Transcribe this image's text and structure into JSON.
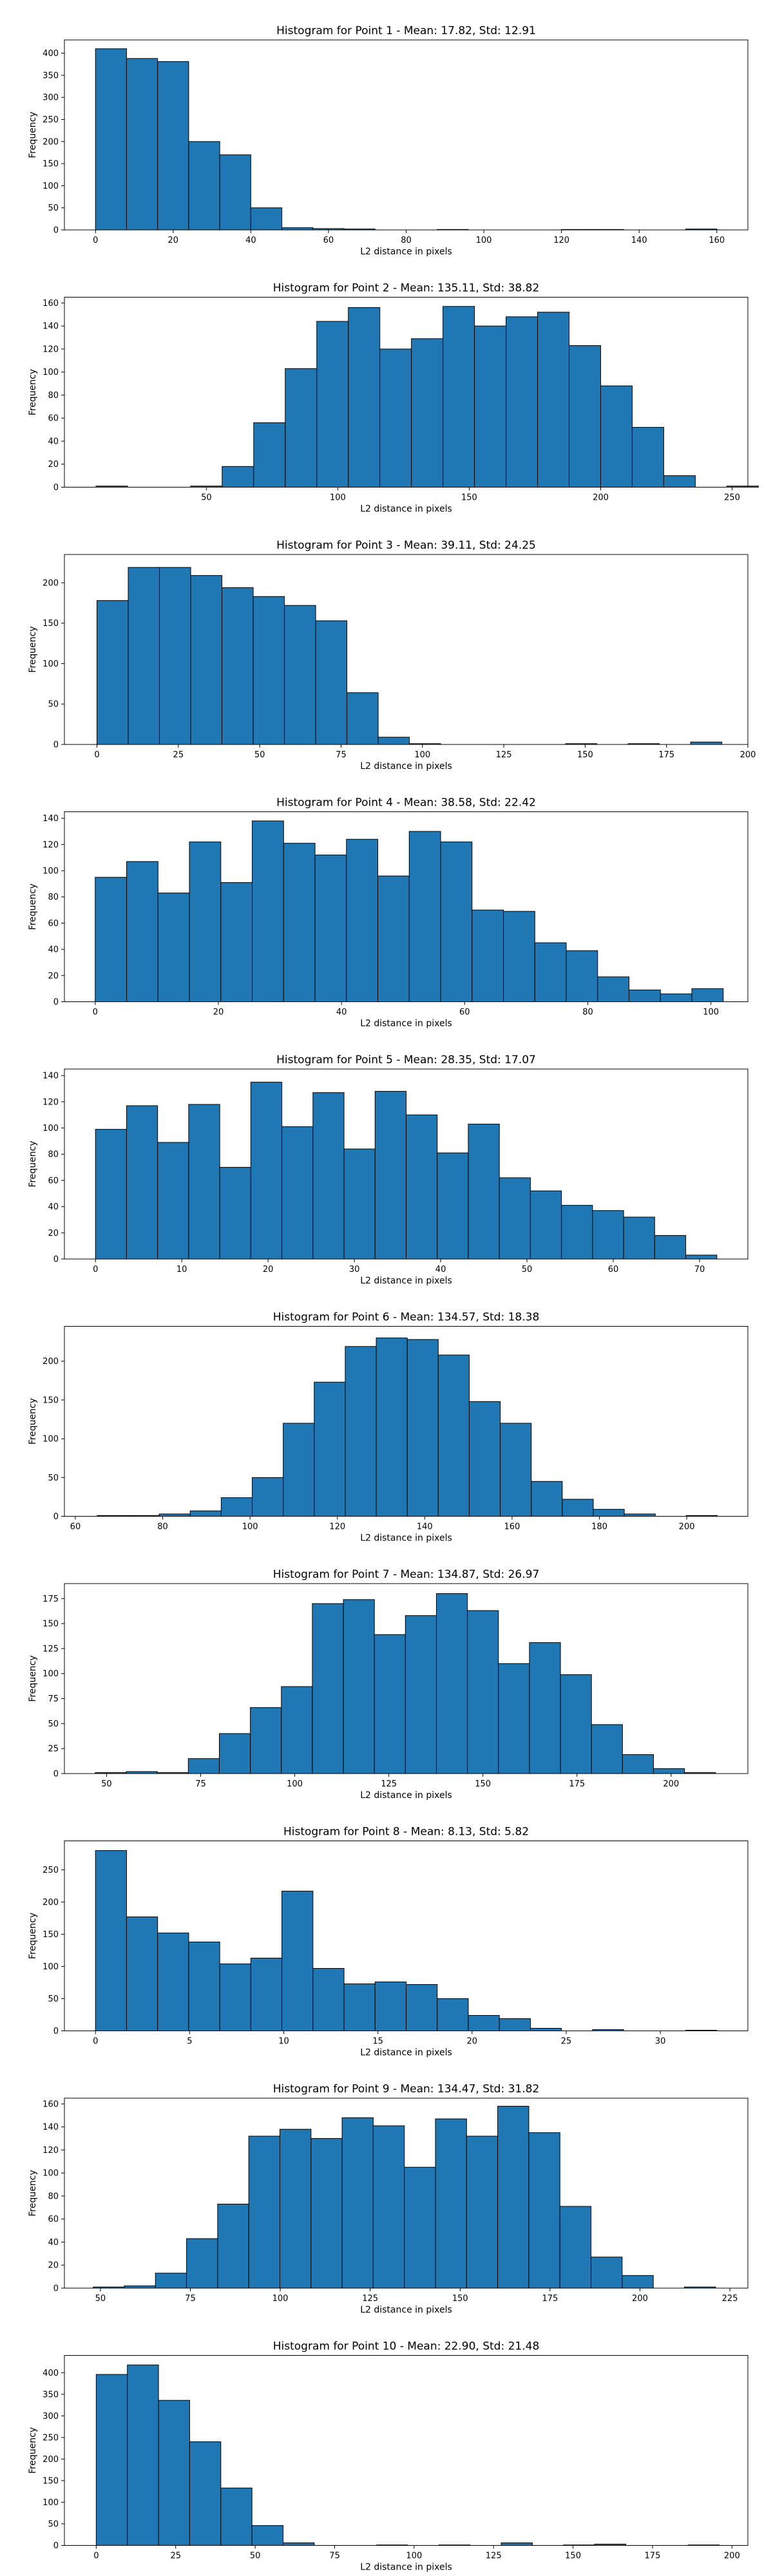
{
  "style": {
    "bar_fill": "#1f77b4",
    "bar_edge": "#000000",
    "axis_color": "#000000",
    "background": "#ffffff"
  },
  "chart_data": [
    {
      "type": "bar",
      "title": "Histogram for Point 1 - Mean: 17.82, Std: 12.91",
      "xlabel": "L2 distance in pixels",
      "ylabel": "Frequency",
      "xlim": [
        -8,
        168
      ],
      "ylim": [
        0,
        430
      ],
      "xticks": [
        0,
        20,
        40,
        60,
        80,
        100,
        120,
        140,
        160
      ],
      "yticks": [
        0,
        50,
        100,
        150,
        200,
        250,
        300,
        350,
        400
      ],
      "bin_start": 0,
      "bin_width": 8,
      "values": [
        410,
        388,
        381,
        200,
        170,
        50,
        5,
        3,
        2,
        0,
        0,
        1,
        0,
        0,
        0,
        1,
        1,
        0,
        0,
        2
      ]
    },
    {
      "type": "bar",
      "title": "Histogram for Point 2 - Mean: 135.11, Std: 38.82",
      "xlabel": "L2 distance in pixels",
      "ylabel": "Frequency",
      "xlim": [
        -4,
        256
      ],
      "ylim": [
        0,
        165
      ],
      "xticks": [
        50,
        100,
        150,
        200,
        250
      ],
      "yticks": [
        0,
        20,
        40,
        60,
        80,
        100,
        120,
        140,
        160
      ],
      "bin_start": 8,
      "bin_width": 12,
      "values": [
        1,
        0,
        0,
        1,
        18,
        56,
        103,
        144,
        156,
        120,
        129,
        157,
        140,
        148,
        152,
        123,
        88,
        52,
        10,
        0,
        1
      ]
    },
    {
      "type": "bar",
      "title": "Histogram for Point 3 - Mean: 39.11, Std: 24.25",
      "xlabel": "L2 distance in pixels",
      "ylabel": "Frequency",
      "xlim": [
        -10,
        200
      ],
      "ylim": [
        0,
        235
      ],
      "xticks": [
        0,
        25,
        50,
        75,
        100,
        125,
        150,
        175,
        200
      ],
      "yticks": [
        0,
        50,
        100,
        150,
        200
      ],
      "bin_start": 0,
      "bin_width": 9.6,
      "values": [
        178,
        219,
        219,
        209,
        194,
        183,
        172,
        153,
        64,
        9,
        1,
        0,
        0,
        0,
        0,
        1,
        0,
        1,
        0,
        3
      ]
    },
    {
      "type": "bar",
      "title": "Histogram for Point 4 - Mean: 38.58, Std: 22.42",
      "xlabel": "L2 distance in pixels",
      "ylabel": "Frequency",
      "xlim": [
        -5,
        106
      ],
      "ylim": [
        0,
        145
      ],
      "xticks": [
        0,
        20,
        40,
        60,
        80,
        100
      ],
      "yticks": [
        0,
        20,
        40,
        60,
        80,
        100,
        120,
        140
      ],
      "bin_start": 0,
      "bin_width": 5.1,
      "values": [
        95,
        107,
        83,
        122,
        91,
        138,
        121,
        112,
        124,
        96,
        130,
        122,
        70,
        69,
        45,
        39,
        19,
        9,
        6,
        10
      ]
    },
    {
      "type": "bar",
      "title": "Histogram for Point 5 - Mean: 28.35, Std: 17.07",
      "xlabel": "L2 distance in pixels",
      "ylabel": "Frequency",
      "xlim": [
        -3.6,
        75.6
      ],
      "ylim": [
        0,
        145
      ],
      "xticks": [
        0,
        10,
        20,
        30,
        40,
        50,
        60,
        70
      ],
      "yticks": [
        0,
        20,
        40,
        60,
        80,
        100,
        120,
        140
      ],
      "bin_start": 0,
      "bin_width": 3.6,
      "values": [
        99,
        117,
        89,
        118,
        70,
        135,
        101,
        127,
        84,
        128,
        110,
        81,
        103,
        62,
        52,
        41,
        37,
        32,
        18,
        3
      ]
    },
    {
      "type": "bar",
      "title": "Histogram for Point 6 - Mean: 134.57, Std: 18.38",
      "xlabel": "L2 distance in pixels",
      "ylabel": "Frequency",
      "xlim": [
        57.5,
        214
      ],
      "ylim": [
        0,
        245
      ],
      "xticks": [
        60,
        80,
        100,
        120,
        140,
        160,
        180,
        200
      ],
      "yticks": [
        0,
        50,
        100,
        150,
        200
      ],
      "bin_start": 65,
      "bin_width": 7.1,
      "values": [
        1,
        1,
        3,
        7,
        24,
        50,
        120,
        173,
        219,
        230,
        228,
        208,
        148,
        120,
        45,
        22,
        9,
        3,
        0,
        1
      ]
    },
    {
      "type": "bar",
      "title": "Histogram for Point 7 - Mean: 134.87, Std: 26.97",
      "xlabel": "L2 distance in pixels",
      "ylabel": "Frequency",
      "xlim": [
        38.8,
        220.4
      ],
      "ylim": [
        0,
        190
      ],
      "xticks": [
        50,
        75,
        100,
        125,
        150,
        175,
        200
      ],
      "yticks": [
        0,
        25,
        50,
        75,
        100,
        125,
        150,
        175
      ],
      "bin_start": 47,
      "bin_width": 8.24,
      "values": [
        1,
        2,
        1,
        15,
        40,
        66,
        87,
        170,
        174,
        139,
        158,
        180,
        163,
        110,
        131,
        99,
        49,
        19,
        5,
        1
      ]
    },
    {
      "type": "bar",
      "title": "Histogram for Point 8 - Mean: 8.13, Std: 5.82",
      "xlabel": "L2 distance in pixels",
      "ylabel": "Frequency",
      "xlim": [
        -1.65,
        34.65
      ],
      "ylim": [
        0,
        295
      ],
      "xticks": [
        0,
        5,
        10,
        15,
        20,
        25,
        30
      ],
      "yticks": [
        0,
        50,
        100,
        150,
        200,
        250
      ],
      "bin_start": 0,
      "bin_width": 1.65,
      "values": [
        280,
        177,
        152,
        138,
        104,
        113,
        217,
        97,
        73,
        76,
        72,
        50,
        24,
        19,
        4,
        0,
        2,
        0,
        0,
        1
      ]
    },
    {
      "type": "bar",
      "title": "Histogram for Point 9 - Mean: 134.47, Std: 31.82",
      "xlabel": "L2 distance in pixels",
      "ylabel": "Frequency",
      "xlim": [
        40,
        230
      ],
      "ylim": [
        0,
        165
      ],
      "xticks": [
        50,
        75,
        100,
        125,
        150,
        175,
        200,
        225
      ],
      "yticks": [
        0,
        20,
        40,
        60,
        80,
        100,
        120,
        140,
        160
      ],
      "bin_start": 48,
      "bin_width": 8.65,
      "values": [
        1,
        2,
        13,
        43,
        73,
        132,
        138,
        130,
        148,
        141,
        105,
        147,
        132,
        158,
        135,
        71,
        27,
        11,
        0,
        1
      ]
    },
    {
      "type": "bar",
      "title": "Histogram for Point 10 - Mean: 22.90, Std: 21.48",
      "xlabel": "L2 distance in pixels",
      "ylabel": "Frequency",
      "xlim": [
        -10,
        205
      ],
      "ylim": [
        0,
        440
      ],
      "xticks": [
        0,
        25,
        50,
        75,
        100,
        125,
        150,
        175,
        200
      ],
      "yticks": [
        0,
        50,
        100,
        150,
        200,
        250,
        300,
        350,
        400
      ],
      "bin_start": 0,
      "bin_width": 9.8,
      "values": [
        396,
        418,
        336,
        240,
        133,
        46,
        6,
        0,
        0,
        1,
        0,
        1,
        0,
        6,
        0,
        1,
        3,
        0,
        0,
        1
      ]
    }
  ]
}
